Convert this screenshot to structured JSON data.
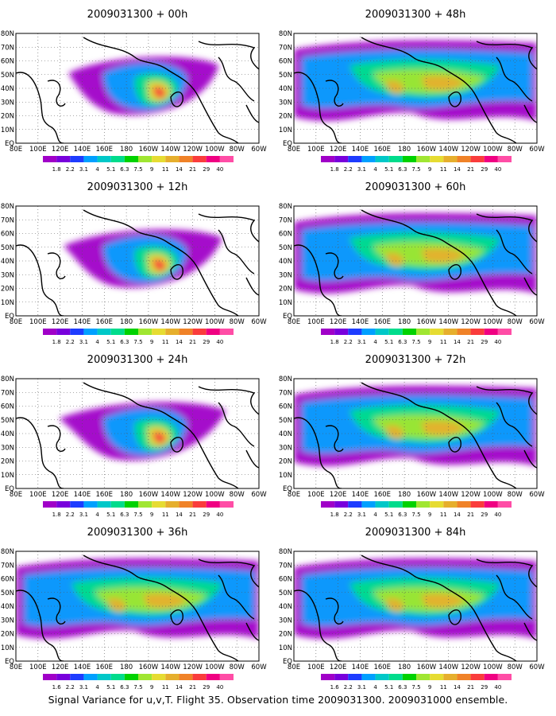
{
  "panels": [
    {
      "title": "2009031300 + 00h",
      "lead": "00h",
      "intensity": 0.25
    },
    {
      "title": "2009031300 + 48h",
      "lead": "48h",
      "intensity": 0.8
    },
    {
      "title": "2009031300 + 12h",
      "lead": "12h",
      "intensity": 0.4
    },
    {
      "title": "2009031300 + 60h",
      "lead": "60h",
      "intensity": 0.88
    },
    {
      "title": "2009031300 + 24h",
      "lead": "24h",
      "intensity": 0.55
    },
    {
      "title": "2009031300 + 72h",
      "lead": "72h",
      "intensity": 0.94
    },
    {
      "title": "2009031300 + 36h",
      "lead": "36h",
      "intensity": 0.68
    },
    {
      "title": "2009031300 + 84h",
      "lead": "84h",
      "intensity": 1.0
    }
  ],
  "x_ticks": [
    "80E",
    "100E",
    "120E",
    "140E",
    "160E",
    "180",
    "160W",
    "140W",
    "120W",
    "100W",
    "80W",
    "60W"
  ],
  "y_ticks": [
    "EQ",
    "10N",
    "20N",
    "30N",
    "40N",
    "50N",
    "60N",
    "70N",
    "80N"
  ],
  "legend": {
    "labels": [
      "1.8",
      "2.2",
      "3.1",
      "4",
      "5.1",
      "6.3",
      "7.5",
      "9",
      "11",
      "14",
      "21",
      "29",
      "40"
    ],
    "labels_bottom_row": [
      "1.6",
      "2.2",
      "3.1",
      "4",
      "5.1",
      "6.3",
      "7.5",
      "9",
      "11",
      "14",
      "21",
      "29",
      "40"
    ],
    "colors": [
      "#a000c8",
      "#7800dc",
      "#1e3cff",
      "#00a0ff",
      "#00c8c8",
      "#00dc8c",
      "#00d200",
      "#a0e632",
      "#e6dc32",
      "#e6af2d",
      "#f08228",
      "#fa3c3c",
      "#f00082",
      "#ff4da6"
    ]
  },
  "caption": "Signal Variance for u,v,T. Flight 35. Observation time 2009031300. 2009031000 ensemble."
}
